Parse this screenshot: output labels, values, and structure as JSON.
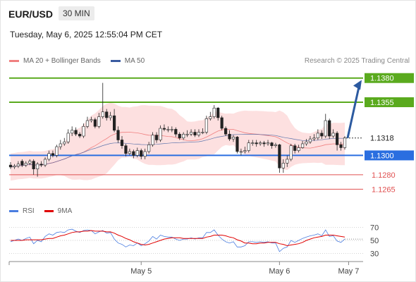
{
  "header": {
    "symbol": "EUR/USD",
    "timeframe": "30 MIN",
    "datetime": "Tuesday, May 6, 2025 12:55:04 PM CET",
    "research": "Research © 2025 Trading Central"
  },
  "legend": {
    "bollinger": {
      "label": "MA 20 + Bollinger Bands",
      "color": "#f08080"
    },
    "ma50": {
      "label": "MA 50",
      "color": "#3a5ba0"
    }
  },
  "rsi_legend": {
    "rsi": {
      "label": "RSI",
      "color": "#4a7de0"
    },
    "ma9": {
      "label": "9MA",
      "color": "#e00000"
    }
  },
  "chart_data": {
    "type": "candlestick",
    "ylim": [
      1.125,
      1.139
    ],
    "levels": [
      {
        "label": "1.1380",
        "value": 1.138,
        "color": "#5aaa1e",
        "kind": "resistance"
      },
      {
        "label": "1.1355",
        "value": 1.1355,
        "color": "#5aaa1e",
        "kind": "resistance"
      },
      {
        "label": "1.1318",
        "value": 1.1318,
        "color": "#444444",
        "kind": "last"
      },
      {
        "label": "1.1300",
        "value": 1.13,
        "color": "#2a6ee0",
        "kind": "pivot"
      },
      {
        "label": "1.1280",
        "value": 1.128,
        "color": "#e05050",
        "kind": "support"
      },
      {
        "label": "1.1265",
        "value": 1.1265,
        "color": "#e05050",
        "kind": "support"
      }
    ],
    "x_labels": [
      "May 5",
      "May 6",
      "May 7"
    ],
    "x_label_index": [
      34,
      70,
      88
    ],
    "closes": [
      1.1288,
      1.1289,
      1.1291,
      1.129,
      1.1292,
      1.1294,
      1.1286,
      1.1291,
      1.129,
      1.1296,
      1.1302,
      1.13,
      1.1309,
      1.1312,
      1.1314,
      1.1323,
      1.1326,
      1.1322,
      1.132,
      1.133,
      1.1336,
      1.1337,
      1.133,
      1.134,
      1.1345,
      1.1339,
      1.1341,
      1.1326,
      1.1316,
      1.131,
      1.1302,
      1.1304,
      1.13,
      1.1305,
      1.1299,
      1.1304,
      1.1311,
      1.1321,
      1.1316,
      1.1328,
      1.1327,
      1.1327,
      1.1327,
      1.1322,
      1.1318,
      1.1322,
      1.1322,
      1.1324,
      1.1321,
      1.1324,
      1.1324,
      1.1338,
      1.134,
      1.1349,
      1.1339,
      1.1328,
      1.1322,
      1.1317,
      1.1319,
      1.1304,
      1.1304,
      1.1305,
      1.1313,
      1.1313,
      1.1312,
      1.1313,
      1.1312,
      1.1313,
      1.131,
      1.1311,
      1.1287,
      1.1292,
      1.1296,
      1.131,
      1.1305,
      1.1308,
      1.1312,
      1.1314,
      1.1317,
      1.1318,
      1.1323,
      1.132,
      1.1336,
      1.132,
      1.1323,
      1.1311,
      1.1308,
      1.1318
    ],
    "opens": [
      1.129,
      1.1288,
      1.1289,
      1.1294,
      1.129,
      1.1292,
      1.1294,
      1.1286,
      1.1291,
      1.129,
      1.1296,
      1.1302,
      1.13,
      1.1309,
      1.1312,
      1.1314,
      1.1323,
      1.1326,
      1.1322,
      1.132,
      1.133,
      1.1336,
      1.1337,
      1.133,
      1.134,
      1.1345,
      1.1339,
      1.1341,
      1.1326,
      1.1316,
      1.131,
      1.1302,
      1.1304,
      1.13,
      1.1305,
      1.1299,
      1.1304,
      1.1311,
      1.1321,
      1.1316,
      1.1328,
      1.1327,
      1.1327,
      1.1327,
      1.1322,
      1.1318,
      1.1322,
      1.1322,
      1.1324,
      1.1321,
      1.1324,
      1.1324,
      1.1338,
      1.134,
      1.1349,
      1.1339,
      1.1328,
      1.1322,
      1.1317,
      1.1319,
      1.1304,
      1.1304,
      1.1305,
      1.1313,
      1.1313,
      1.1312,
      1.1313,
      1.1312,
      1.1313,
      1.131,
      1.1311,
      1.1287,
      1.1292,
      1.1296,
      1.131,
      1.1305,
      1.1308,
      1.1312,
      1.1314,
      1.1317,
      1.1318,
      1.1323,
      1.132,
      1.1336,
      1.132,
      1.1323,
      1.1311,
      1.1308
    ],
    "highs": [
      1.1293,
      1.1291,
      1.1294,
      1.1296,
      1.1294,
      1.1296,
      1.1296,
      1.1293,
      1.1294,
      1.1298,
      1.1305,
      1.1305,
      1.1311,
      1.1316,
      1.1318,
      1.1327,
      1.133,
      1.1329,
      1.1324,
      1.1333,
      1.134,
      1.134,
      1.1339,
      1.1344,
      1.1375,
      1.1348,
      1.1345,
      1.1348,
      1.133,
      1.132,
      1.1312,
      1.1307,
      1.1306,
      1.1308,
      1.1307,
      1.1307,
      1.1314,
      1.1324,
      1.1324,
      1.1331,
      1.1332,
      1.133,
      1.133,
      1.1329,
      1.1324,
      1.1324,
      1.1326,
      1.1327,
      1.1327,
      1.1327,
      1.1328,
      1.1341,
      1.1345,
      1.1352,
      1.135,
      1.1341,
      1.133,
      1.1326,
      1.1321,
      1.132,
      1.1307,
      1.1309,
      1.1316,
      1.1316,
      1.1316,
      1.1315,
      1.1315,
      1.1316,
      1.1314,
      1.1313,
      1.1312,
      1.1296,
      1.13,
      1.1312,
      1.1312,
      1.1311,
      1.1315,
      1.1317,
      1.132,
      1.1322,
      1.1327,
      1.1326,
      1.1343,
      1.1338,
      1.1327,
      1.1325,
      1.1314,
      1.132
    ],
    "lows": [
      1.1286,
      1.1286,
      1.1287,
      1.1288,
      1.1288,
      1.129,
      1.128,
      1.1278,
      1.1288,
      1.1288,
      1.1294,
      1.1298,
      1.1298,
      1.1306,
      1.131,
      1.1312,
      1.132,
      1.132,
      1.1318,
      1.1318,
      1.1328,
      1.1334,
      1.1328,
      1.1328,
      1.1338,
      1.1336,
      1.1336,
      1.1324,
      1.1313,
      1.1307,
      1.1299,
      1.13,
      1.1297,
      1.1298,
      1.1296,
      1.1296,
      1.1302,
      1.1309,
      1.1313,
      1.1314,
      1.1325,
      1.1324,
      1.1324,
      1.1319,
      1.1316,
      1.1316,
      1.1319,
      1.132,
      1.1319,
      1.1319,
      1.1322,
      1.1322,
      1.1336,
      1.1338,
      1.1336,
      1.1326,
      1.132,
      1.1315,
      1.1314,
      1.1302,
      1.13,
      1.1302,
      1.1303,
      1.131,
      1.1309,
      1.131,
      1.1309,
      1.131,
      1.1307,
      1.1308,
      1.1282,
      1.1282,
      1.1288,
      1.1294,
      1.1302,
      1.1303,
      1.1307,
      1.131,
      1.1312,
      1.1315,
      1.1316,
      1.1317,
      1.1318,
      1.1317,
      1.1318,
      1.1305,
      1.1305,
      1.1306
    ],
    "rsi": {
      "ylim": [
        20,
        80
      ],
      "ticks": [
        70,
        50,
        30
      ],
      "tick_labels": [
        "70",
        "50",
        "30"
      ],
      "rsi_values": [
        48,
        50,
        52,
        50,
        53,
        55,
        45,
        50,
        48,
        56,
        60,
        58,
        62,
        63,
        62,
        66,
        67,
        64,
        62,
        65,
        66,
        65,
        60,
        63,
        65,
        61,
        62,
        52,
        46,
        44,
        40,
        43,
        42,
        46,
        42,
        45,
        49,
        56,
        52,
        58,
        56,
        55,
        55,
        52,
        50,
        52,
        52,
        54,
        52,
        54,
        54,
        62,
        62,
        66,
        58,
        52,
        48,
        46,
        48,
        40,
        40,
        42,
        48,
        48,
        47,
        48,
        47,
        48,
        46,
        46,
        33,
        38,
        40,
        50,
        47,
        50,
        53,
        55,
        57,
        58,
        60,
        57,
        66,
        56,
        57,
        49,
        47,
        52
      ],
      "ma9_values": [
        50,
        50,
        50,
        50,
        51,
        51,
        51,
        51,
        51,
        52,
        53,
        53,
        55,
        57,
        58,
        60,
        62,
        63,
        63,
        64,
        64,
        65,
        64,
        64,
        64,
        63,
        63,
        61,
        58,
        56,
        53,
        51,
        48,
        46,
        44,
        43,
        44,
        46,
        48,
        50,
        52,
        53,
        54,
        54,
        54,
        53,
        53,
        53,
        53,
        53,
        53,
        55,
        56,
        58,
        58,
        58,
        57,
        55,
        54,
        51,
        49,
        46,
        46,
        45,
        45,
        46,
        46,
        47,
        47,
        47,
        45,
        44,
        42,
        43,
        44,
        45,
        47,
        50,
        52,
        54,
        55,
        56,
        58,
        58,
        58,
        57,
        56,
        55
      ]
    }
  }
}
